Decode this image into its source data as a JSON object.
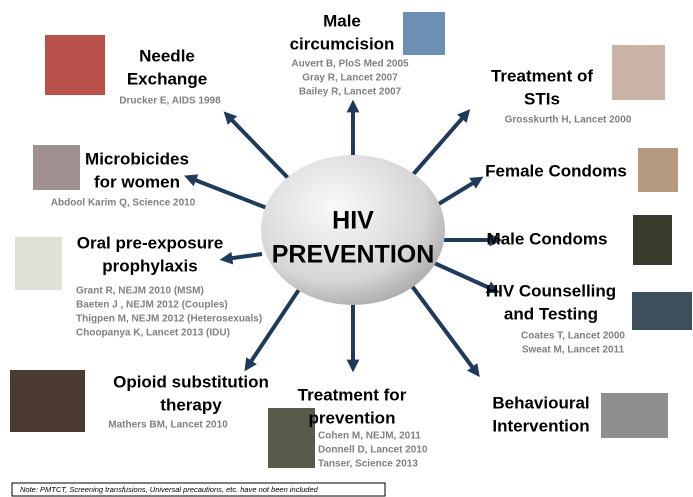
{
  "center": {
    "lines": [
      "HIV",
      "PREVENTION"
    ]
  },
  "nodes": [
    {
      "title": [
        "Needle",
        "Exchange"
      ],
      "refs": [
        "Drucker E, AIDS 1998"
      ]
    },
    {
      "title": [
        "Male",
        "circumcision"
      ],
      "refs": [
        "Auvert B, PloS Med 2005",
        "Gray R, Lancet 2007",
        "Bailey R, Lancet 2007"
      ]
    },
    {
      "title": [
        "Treatment of",
        "STIs"
      ],
      "refs": [
        "Grosskurth H, Lancet 2000"
      ]
    },
    {
      "title": [
        "Female Condoms"
      ],
      "refs": []
    },
    {
      "title": [
        "Male Condoms"
      ],
      "refs": []
    },
    {
      "title": [
        "HIV Counselling",
        "and Testing"
      ],
      "refs": [
        "Coates T, Lancet 2000",
        "Sweat M, Lancet 2011"
      ]
    },
    {
      "title": [
        "Behavioural",
        "Intervention"
      ],
      "refs": []
    },
    {
      "title": [
        "Treatment for",
        "prevention"
      ],
      "refs": [
        "Cohen M, NEJM, 2011",
        "Donnell D, Lancet 2010",
        "Tanser, Science 2013"
      ]
    },
    {
      "title": [
        "Opioid substitution",
        "therapy"
      ],
      "refs": [
        "Mathers BM, Lancet 2010"
      ]
    },
    {
      "title": [
        "Oral pre-exposure",
        "prophylaxis"
      ],
      "refs": [
        "Grant R, NEJM 2010 (MSM)",
        "Baeten J , NEJM 2012 (Couples)",
        "Thigpen M, NEJM 2012 (Heterosexuals)",
        "Choopanya K, Lancet 2013 (IDU)"
      ]
    },
    {
      "title": [
        "Microbicides",
        "for women"
      ],
      "refs": [
        "Abdool Karim Q, Science 2010"
      ]
    }
  ],
  "note": "Note: PMTCT, Screening transfusions, Universal precautions, etc. have not been included"
}
